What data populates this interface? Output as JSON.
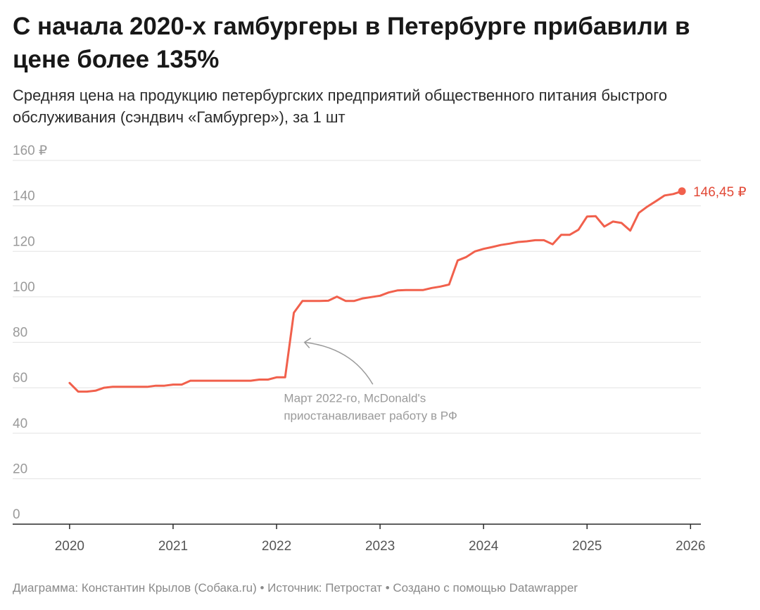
{
  "header": {
    "title": "С начала 2020-х гамбургеры в Петербурге прибавили в цене более 135%",
    "subtitle": "Средняя цена на продукцию петербургских предприятий общественного питания быстрого обслуживания (сэндвич «Гамбургер»), за 1 шт"
  },
  "footer": {
    "text": "Диаграмма: Константин Крылов (Собака.ru) • Источник: Петростат • Создано с помощью Datawrapper"
  },
  "colors": {
    "line": "#f1604c",
    "end_label": "#e24a38",
    "grid": "#e3e3e3",
    "axis_text": "#9a9a9a",
    "annotation": "#9a9a9a"
  },
  "chart_data": {
    "type": "line",
    "title": "",
    "xlabel": "",
    "ylabel": "",
    "ylim": [
      0,
      160
    ],
    "xlim": [
      2019.45,
      2026.1
    ],
    "grid": true,
    "y_ticks": [
      {
        "value": 0,
        "label": "0"
      },
      {
        "value": 20,
        "label": "20"
      },
      {
        "value": 40,
        "label": "40"
      },
      {
        "value": 60,
        "label": "60"
      },
      {
        "value": 80,
        "label": "80"
      },
      {
        "value": 100,
        "label": "100"
      },
      {
        "value": 120,
        "label": "120"
      },
      {
        "value": 140,
        "label": "140"
      },
      {
        "value": 160,
        "label": "160 ₽"
      }
    ],
    "x_ticks": [
      {
        "value": 2020,
        "label": "2020"
      },
      {
        "value": 2021,
        "label": "2021"
      },
      {
        "value": 2022,
        "label": "2022"
      },
      {
        "value": 2023,
        "label": "2023"
      },
      {
        "value": 2024,
        "label": "2024"
      },
      {
        "value": 2025,
        "label": "2025"
      },
      {
        "value": 2026,
        "label": "2026"
      }
    ],
    "series": [
      {
        "x": [
          2020.0,
          2020.083,
          2020.167,
          2020.25,
          2020.333,
          2020.417,
          2020.5,
          2020.583,
          2020.667,
          2020.75,
          2020.833,
          2020.917,
          2021.0,
          2021.083,
          2021.167,
          2021.25,
          2021.333,
          2021.417,
          2021.5,
          2021.583,
          2021.667,
          2021.75,
          2021.833,
          2021.917,
          2022.0,
          2022.083,
          2022.167,
          2022.25,
          2022.333,
          2022.417,
          2022.5,
          2022.583,
          2022.667,
          2022.75,
          2022.833,
          2022.917,
          2023.0,
          2023.083,
          2023.167,
          2023.25,
          2023.333,
          2023.417,
          2023.5,
          2023.583,
          2023.667,
          2023.75,
          2023.833,
          2023.917,
          2024.0,
          2024.083,
          2024.167,
          2024.25,
          2024.333,
          2024.417,
          2024.5,
          2024.583,
          2024.667,
          2024.75,
          2024.833,
          2024.917,
          2025.0,
          2025.083,
          2025.167,
          2025.25,
          2025.333,
          2025.417,
          2025.5,
          2025.583,
          2025.667,
          2025.75,
          2025.833,
          2025.917
        ],
        "y": [
          62.1,
          58.3,
          58.3,
          58.7,
          60.0,
          60.4,
          60.4,
          60.4,
          60.4,
          60.4,
          60.9,
          60.9,
          61.4,
          61.4,
          63.1,
          63.1,
          63.1,
          63.1,
          63.1,
          63.1,
          63.1,
          63.1,
          63.6,
          63.6,
          64.6,
          64.6,
          93.0,
          98.2,
          98.2,
          98.2,
          98.3,
          100.1,
          98.2,
          98.2,
          99.3,
          99.9,
          100.5,
          101.9,
          102.8,
          103.0,
          103.0,
          103.0,
          103.9,
          104.5,
          105.4,
          116.0,
          117.5,
          120.0,
          121.1,
          121.9,
          122.8,
          123.4,
          124.1,
          124.4,
          124.9,
          124.9,
          123.1,
          127.3,
          127.3,
          129.5,
          135.3,
          135.5,
          130.9,
          133.1,
          132.5,
          129.1,
          136.9,
          139.7,
          142.1,
          144.6,
          145.2,
          146.45
        ]
      }
    ],
    "end_label": "146,45 ₽",
    "annotation": {
      "lines": [
        "Март 2022-го, McDonald's",
        "приостанавливает работу в РФ"
      ]
    }
  }
}
